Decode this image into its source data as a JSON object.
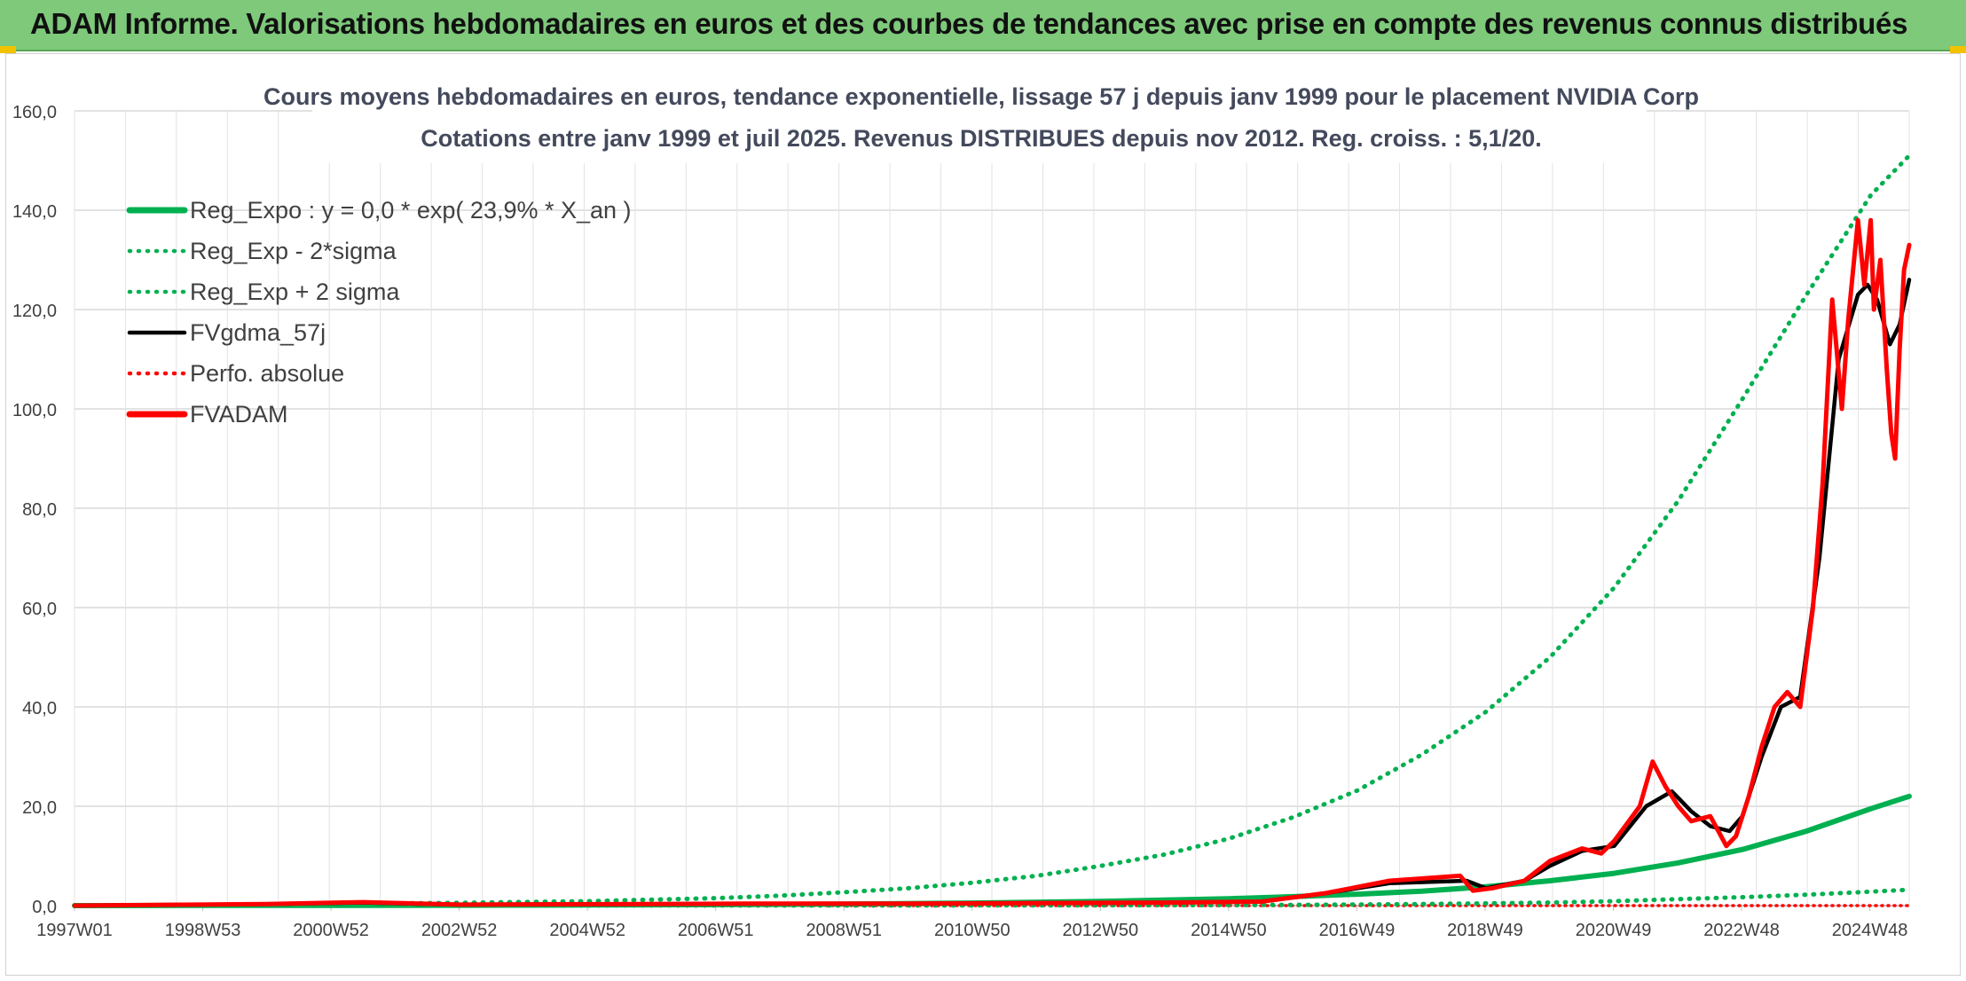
{
  "header": {
    "title": "ADAM Informe. Valorisations hebdomadaires en euros et des courbes de tendances avec prise en compte des revenus connus distribués"
  },
  "colors": {
    "banner": "#7ec97a",
    "reg_expo": "#00b050",
    "reg_band": "#00b050",
    "fvgdma": "#000000",
    "perfo": "#ff0000",
    "fvadam": "#ff0000"
  },
  "chart_data": {
    "type": "line",
    "title_line1": "Cours moyens hebdomadaires en euros, tendance exponentielle, lissage 57 j depuis janv 1999 pour le placement NVIDIA Corp",
    "title_line2": "Cotations entre janv 1999 et juil 2025. Revenus DISTRIBUES depuis nov 2012. Reg. croiss. : 5,1/20.",
    "xlabel": "",
    "ylabel": "",
    "ylim": [
      0,
      160
    ],
    "yticks": [
      "0,0",
      "20,0",
      "40,0",
      "60,0",
      "80,0",
      "100,0",
      "120,0",
      "140,0",
      "160,0"
    ],
    "xticks": [
      "1997W01",
      "1998W53",
      "2000W52",
      "2002W52",
      "2004W52",
      "2006W51",
      "2008W51",
      "2010W50",
      "2012W50",
      "2014W50",
      "2016W49",
      "2018W49",
      "2020W49",
      "2022W48",
      "2024W48"
    ],
    "xrange": [
      1997.0,
      2025.6
    ],
    "grid": true,
    "legend_position": "top-left",
    "legend": [
      {
        "label": "Reg_Expo : y = 0,0 * exp( 23,9% *  X_an )",
        "style": "solid-thick",
        "color": "#00b050"
      },
      {
        "label": "Reg_Exp - 2*sigma",
        "style": "dotted",
        "color": "#00b050"
      },
      {
        "label": "Reg_Exp + 2 sigma",
        "style": "dotted",
        "color": "#00b050"
      },
      {
        "label": "FVgdma_57j",
        "style": "solid",
        "color": "#000000"
      },
      {
        "label": "Perfo. absolue",
        "style": "dotted",
        "color": "#ff0000"
      },
      {
        "label": "FVADAM",
        "style": "solid-thick",
        "color": "#ff0000"
      }
    ],
    "series": [
      {
        "name": "Reg_Expo : y = 0,0 * exp( 23,9% *  X_an )",
        "x": [
          1997.0,
          1999.0,
          2001.0,
          2003.0,
          2005.0,
          2007.0,
          2009.0,
          2011.0,
          2013.0,
          2015.0,
          2016.0,
          2017.0,
          2018.0,
          2019.0,
          2020.0,
          2021.0,
          2022.0,
          2023.0,
          2024.0,
          2025.0,
          2025.6
        ],
        "values": [
          0.0,
          0.03,
          0.05,
          0.08,
          0.13,
          0.2,
          0.32,
          0.52,
          0.84,
          1.4,
          1.8,
          2.3,
          2.9,
          3.8,
          5.0,
          6.5,
          8.6,
          11.3,
          15.0,
          19.5,
          22.0
        ]
      },
      {
        "name": "Reg_Exp - 2*sigma",
        "x": [
          1997.0,
          2001.0,
          2005.0,
          2009.0,
          2013.0,
          2016.0,
          2018.0,
          2020.0,
          2021.0,
          2022.0,
          2023.0,
          2024.0,
          2025.0,
          2025.6
        ],
        "values": [
          0.0,
          0.0,
          0.01,
          0.02,
          0.05,
          0.15,
          0.3,
          0.6,
          0.9,
          1.3,
          1.7,
          2.2,
          2.8,
          3.2
        ]
      },
      {
        "name": "Reg_Exp + 2 sigma",
        "x": [
          1997.0,
          1999.0,
          2001.0,
          2003.0,
          2005.0,
          2007.0,
          2008.0,
          2009.0,
          2010.0,
          2011.0,
          2012.0,
          2013.0,
          2014.0,
          2015.0,
          2016.0,
          2017.0,
          2018.0,
          2019.0,
          2020.0,
          2021.0,
          2022.0,
          2023.0,
          2024.0,
          2025.0,
          2025.6
        ],
        "values": [
          0.0,
          0.15,
          0.35,
          0.55,
          0.9,
          1.5,
          2.0,
          2.7,
          3.5,
          4.6,
          6.0,
          8.0,
          10.3,
          13.5,
          17.8,
          23.2,
          30.4,
          39.0,
          50.0,
          64.0,
          81.5,
          102.0,
          123.0,
          143.0,
          151.0
        ]
      },
      {
        "name": "FVgdma_57j",
        "x": [
          1997.0,
          2000.0,
          2001.5,
          2003.0,
          2007.5,
          2010.0,
          2014.0,
          2015.5,
          2016.5,
          2017.5,
          2018.7,
          2019.0,
          2019.6,
          2020.0,
          2020.5,
          2021.0,
          2021.5,
          2021.9,
          2022.2,
          2022.5,
          2022.8,
          2023.0,
          2023.3,
          2023.6,
          2023.9,
          2024.2,
          2024.5,
          2024.8,
          2024.95,
          2025.1,
          2025.3,
          2025.45,
          2025.6
        ],
        "values": [
          0.0,
          0.3,
          0.6,
          0.2,
          0.4,
          0.4,
          0.6,
          0.8,
          2.5,
          4.5,
          5.0,
          3.5,
          5.0,
          8.0,
          11.0,
          12.0,
          20.0,
          23.0,
          19.0,
          16.0,
          15.0,
          18.0,
          30.0,
          40.0,
          42.0,
          70.0,
          110.0,
          123.0,
          125.0,
          122.0,
          113.0,
          117.0,
          126.0
        ]
      },
      {
        "name": "FVADAM",
        "x": [
          1997.0,
          2000.0,
          2001.5,
          2003.0,
          2007.5,
          2010.0,
          2014.0,
          2015.5,
          2016.5,
          2017.5,
          2018.6,
          2018.8,
          2019.1,
          2019.6,
          2020.0,
          2020.5,
          2020.8,
          2021.0,
          2021.4,
          2021.6,
          2021.8,
          2022.0,
          2022.2,
          2022.5,
          2022.75,
          2022.9,
          2023.1,
          2023.3,
          2023.5,
          2023.7,
          2023.9,
          2024.1,
          2024.25,
          2024.4,
          2024.55,
          2024.65,
          2024.8,
          2024.9,
          2025.0,
          2025.05,
          2025.15,
          2025.25,
          2025.32,
          2025.38,
          2025.45,
          2025.52,
          2025.6
        ],
        "values": [
          0.0,
          0.3,
          0.7,
          0.2,
          0.4,
          0.4,
          0.6,
          0.8,
          2.5,
          5.0,
          6.0,
          3.0,
          3.5,
          5.0,
          9.0,
          11.5,
          10.5,
          13.0,
          20.0,
          29.0,
          24.0,
          20.0,
          17.0,
          18.0,
          12.0,
          14.0,
          22.0,
          32.0,
          40.0,
          43.0,
          40.0,
          60.0,
          85.0,
          122.0,
          100.0,
          118.0,
          138.0,
          125.0,
          138.0,
          120.0,
          130.0,
          108.0,
          95.0,
          90.0,
          112.0,
          128.0,
          133.0
        ]
      },
      {
        "name": "Perfo. absolue",
        "x": [
          1997.0,
          2025.6
        ],
        "values": [
          0.0,
          0.0
        ]
      }
    ]
  }
}
